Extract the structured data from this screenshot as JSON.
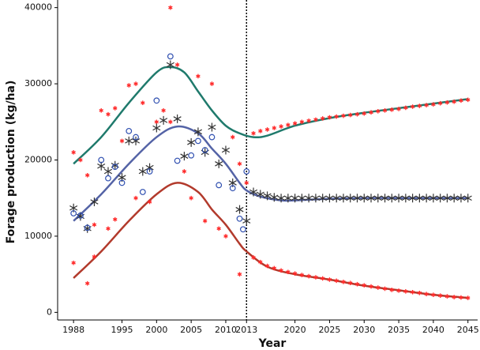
{
  "chart_data": {
    "type": "line_scatter",
    "xlabel": "Year",
    "ylabel": "Forage production (kg/ha)",
    "xlim": [
      1985.7,
      2046.4
    ],
    "ylim": [
      -1000,
      41000
    ],
    "xticks": [
      1988,
      1995,
      2000,
      2005,
      2010,
      2013,
      2020,
      2025,
      2030,
      2035,
      2040,
      2045
    ],
    "yticks": [
      0,
      10000,
      20000,
      30000,
      40000
    ],
    "vline": 2013,
    "series": [
      {
        "mode": "line",
        "color": "#1f7a6c",
        "x": [
          1988,
          1992,
          1996,
          2000,
          2002,
          2004,
          2006,
          2008,
          2010,
          2012,
          2014,
          2016,
          2020,
          2025,
          2030,
          2035,
          2040,
          2045
        ],
        "values": [
          19500,
          23000,
          27500,
          31500,
          32200,
          31500,
          29000,
          26500,
          24500,
          23500,
          23000,
          23200,
          24500,
          25500,
          26200,
          26800,
          27400,
          28000
        ]
      },
      {
        "mode": "line",
        "color": "#5463a6",
        "x": [
          1988,
          1992,
          1996,
          2000,
          2003,
          2006,
          2008,
          2010,
          2012,
          2013,
          2015,
          2018,
          2020,
          2025,
          2030,
          2035,
          2040,
          2045
        ],
        "values": [
          12000,
          15500,
          19500,
          23000,
          24400,
          23500,
          21500,
          19500,
          17000,
          16000,
          15200,
          14700,
          14700,
          14900,
          15000,
          15000,
          15000,
          15000
        ]
      },
      {
        "mode": "line",
        "color": "#b23a2c",
        "x": [
          1988,
          1992,
          1996,
          2000,
          2003,
          2006,
          2008,
          2010,
          2012,
          2013,
          2016,
          2020,
          2025,
          2030,
          2035,
          2040,
          2045
        ],
        "values": [
          4500,
          8000,
          12000,
          15500,
          17000,
          15800,
          13500,
          11500,
          9000,
          8000,
          6000,
          5000,
          4300,
          3500,
          2900,
          2300,
          1900
        ]
      },
      {
        "mode": "points",
        "marker": "star",
        "color": "#ff2a2a",
        "x": [
          1988,
          1988,
          1989,
          1990,
          1990,
          1991,
          1991,
          1992,
          1993,
          1993,
          1994,
          1994,
          1995,
          1996,
          1997,
          1997,
          1998,
          1999,
          2000,
          2001,
          2002,
          2002,
          2003,
          2004,
          2005,
          2006,
          2007,
          2008,
          2009,
          2010,
          2011,
          2012,
          2012,
          2013
        ],
        "values": [
          21000,
          6500,
          20000,
          3800,
          18000,
          7300,
          11500,
          26500,
          26000,
          11000,
          12200,
          26800,
          22500,
          29800,
          30000,
          15000,
          27500,
          14500,
          25000,
          26500,
          40000,
          25000,
          32500,
          18500,
          15000,
          31000,
          12000,
          30000,
          11000,
          10000,
          23000,
          19500,
          5000,
          17000
        ]
      },
      {
        "mode": "points",
        "marker": "asterisk",
        "color": "#333333",
        "x": [
          1988,
          1989,
          1990,
          1991,
          1992,
          1993,
          1994,
          1995,
          1996,
          1997,
          1998,
          1999,
          2000,
          2001,
          2002,
          2003,
          2004,
          2005,
          2006,
          2007,
          2008,
          2009,
          2010,
          2011,
          2012,
          2013
        ],
        "values": [
          13700,
          12600,
          11000,
          14500,
          19200,
          18500,
          19300,
          17700,
          22500,
          22500,
          18500,
          19000,
          24200,
          25200,
          32500,
          25400,
          20500,
          22300,
          23700,
          21000,
          24300,
          19500,
          21300,
          17000,
          13500,
          12000
        ]
      },
      {
        "mode": "points",
        "marker": "circle",
        "color": "#2f4fb0",
        "x": [
          1988,
          1989,
          1990,
          1992,
          1993,
          1994,
          1995,
          1996,
          1997,
          1998,
          1999,
          2000,
          2002,
          2003,
          2005,
          2006,
          2007,
          2008,
          2009,
          2011,
          2012,
          2012.5,
          2013
        ],
        "values": [
          13000,
          12700,
          11100,
          20000,
          17600,
          19100,
          17000,
          23800,
          23000,
          15800,
          18500,
          27800,
          33600,
          19900,
          20600,
          22500,
          21300,
          23000,
          16700,
          16300,
          12300,
          10900,
          18500
        ]
      },
      {
        "mode": "points",
        "marker": "star",
        "color": "#ff2a2a",
        "x": [
          2014,
          2015,
          2016,
          2017,
          2018,
          2019,
          2020,
          2021,
          2022,
          2023,
          2024,
          2025,
          2026,
          2027,
          2028,
          2029,
          2030,
          2031,
          2032,
          2033,
          2034,
          2035,
          2036,
          2037,
          2038,
          2039,
          2040,
          2041,
          2042,
          2043,
          2044,
          2045
        ],
        "values": [
          23500,
          23800,
          24000,
          24200,
          24400,
          24600,
          24800,
          25000,
          25150,
          25300,
          25450,
          25600,
          25700,
          25800,
          25900,
          26000,
          26100,
          26250,
          26400,
          26500,
          26600,
          26700,
          26850,
          27000,
          27100,
          27200,
          27300,
          27450,
          27550,
          27650,
          27800,
          27900
        ]
      },
      {
        "mode": "points",
        "marker": "asterisk",
        "color": "#333333",
        "x": [
          2014,
          2015,
          2016,
          2017,
          2018,
          2019,
          2020,
          2021,
          2022,
          2023,
          2024,
          2025,
          2026,
          2027,
          2028,
          2029,
          2030,
          2031,
          2032,
          2033,
          2034,
          2035,
          2036,
          2037,
          2038,
          2039,
          2040,
          2041,
          2042,
          2043,
          2044,
          2045
        ],
        "values": [
          15800,
          15500,
          15300,
          15100,
          15000,
          15000,
          15000,
          15000,
          15000,
          15000,
          15000,
          15000,
          15000,
          15000,
          15000,
          15000,
          15000,
          15000,
          15000,
          15000,
          15000,
          15000,
          15000,
          15000,
          15000,
          15000,
          15000,
          15000,
          15000,
          15000,
          15000,
          15000
        ]
      },
      {
        "mode": "points",
        "marker": "star",
        "color": "#ff2a2a",
        "x": [
          2014,
          2015,
          2016,
          2017,
          2018,
          2019,
          2020,
          2021,
          2022,
          2023,
          2024,
          2025,
          2026,
          2027,
          2028,
          2029,
          2030,
          2031,
          2032,
          2033,
          2034,
          2035,
          2036,
          2037,
          2038,
          2039,
          2040,
          2041,
          2042,
          2043,
          2044,
          2045
        ],
        "values": [
          7200,
          6600,
          6100,
          5800,
          5500,
          5300,
          5100,
          4900,
          4750,
          4600,
          4450,
          4300,
          4150,
          4000,
          3850,
          3700,
          3550,
          3400,
          3250,
          3100,
          2950,
          2850,
          2750,
          2650,
          2550,
          2400,
          2300,
          2200,
          2100,
          2000,
          1950,
          1900
        ]
      }
    ]
  }
}
